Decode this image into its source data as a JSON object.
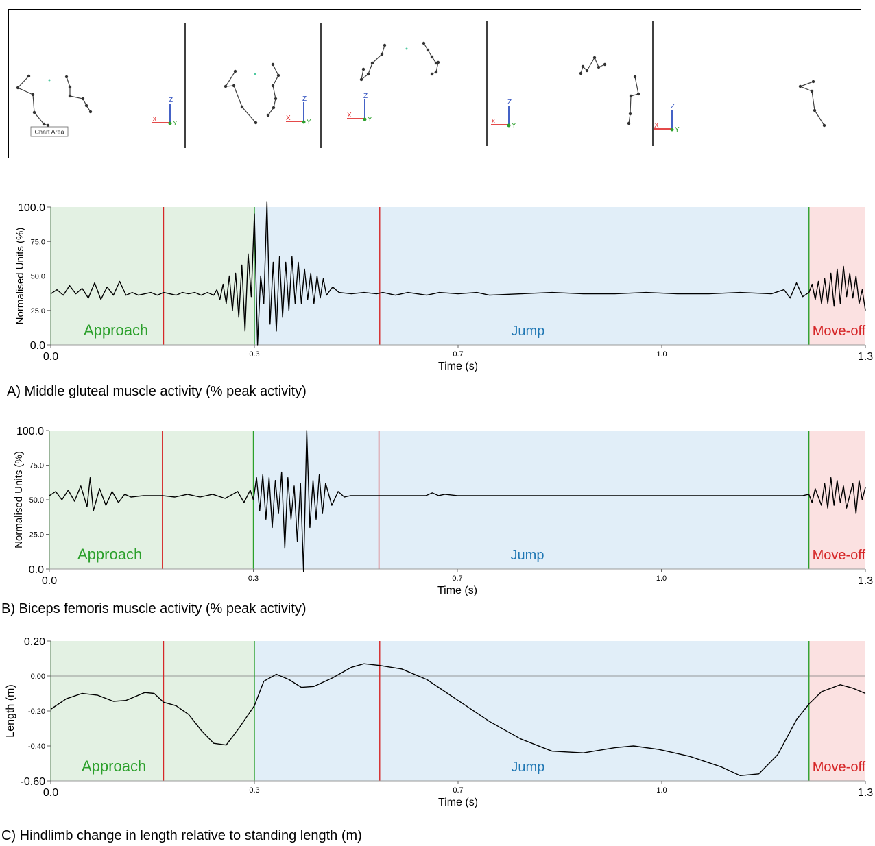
{
  "stick_panel": {
    "tooltip": "Chart Area",
    "axis_labels": {
      "x": "X",
      "y": "Y",
      "z": "Z"
    },
    "colors": {
      "x": "#e03030",
      "y": "#2ca02c",
      "z": "#3050c0",
      "segment": "#404040",
      "marker": "#4fc9a0"
    }
  },
  "phase_colors": {
    "approach_fill": "#e3f1e3",
    "jump_fill": "#e1eef8",
    "moveoff_fill": "#fbe1e1",
    "approach_text": "#2ca02c",
    "jump_text": "#1f77b4",
    "moveoff_text": "#d62728",
    "red_line": "#d62728",
    "green_line": "#2ca02c"
  },
  "chart_data": [
    {
      "id": "A",
      "type": "line",
      "caption": "A) Middle gluteal muscle activity (% peak activity)",
      "ylabel": "Normalised Units (%)",
      "xlabel": "Time (s)",
      "xlim": [
        0,
        1.3
      ],
      "ylim": [
        0,
        100
      ],
      "x_ticks": [
        {
          "v": 0,
          "label": "0.0"
        },
        {
          "v": 0.325,
          "label": "0.3"
        },
        {
          "v": 0.65,
          "label": "0.7"
        },
        {
          "v": 0.975,
          "label": "1.0"
        },
        {
          "v": 1.3,
          "label": "1.3"
        }
      ],
      "y_ticks": [
        {
          "v": 0,
          "label": "0.0"
        },
        {
          "v": 25,
          "label": "25.0"
        },
        {
          "v": 50,
          "label": "50.0"
        },
        {
          "v": 75,
          "label": "75.0"
        },
        {
          "v": 100,
          "label": "100.0"
        }
      ],
      "phases": [
        {
          "label": "Approach",
          "start": 0,
          "end": 0.325
        },
        {
          "label": "Jump",
          "start": 0.325,
          "end": 1.21
        },
        {
          "label": "Move-off",
          "start": 1.21,
          "end": 1.3
        }
      ],
      "red_lines": [
        0.18,
        0.525
      ],
      "green_lines": [
        0,
        0.325,
        1.21
      ],
      "baseline": 37,
      "y_points": [
        [
          0,
          37
        ],
        [
          0.01,
          40
        ],
        [
          0.02,
          36
        ],
        [
          0.03,
          43
        ],
        [
          0.04,
          37
        ],
        [
          0.05,
          41
        ],
        [
          0.06,
          34
        ],
        [
          0.07,
          45
        ],
        [
          0.08,
          33
        ],
        [
          0.09,
          42
        ],
        [
          0.1,
          36
        ],
        [
          0.11,
          46
        ],
        [
          0.12,
          36
        ],
        [
          0.13,
          38
        ],
        [
          0.14,
          36
        ],
        [
          0.15,
          37
        ],
        [
          0.16,
          38
        ],
        [
          0.17,
          36
        ],
        [
          0.18,
          38
        ],
        [
          0.19,
          37
        ],
        [
          0.2,
          36
        ],
        [
          0.21,
          38
        ],
        [
          0.22,
          37
        ],
        [
          0.23,
          38
        ],
        [
          0.24,
          36
        ],
        [
          0.25,
          38
        ],
        [
          0.26,
          36
        ],
        [
          0.265,
          40
        ],
        [
          0.27,
          33
        ],
        [
          0.275,
          44
        ],
        [
          0.28,
          30
        ],
        [
          0.285,
          50
        ],
        [
          0.29,
          25
        ],
        [
          0.295,
          52
        ],
        [
          0.3,
          20
        ],
        [
          0.305,
          58
        ],
        [
          0.31,
          10
        ],
        [
          0.315,
          66
        ],
        [
          0.32,
          35
        ],
        [
          0.325,
          95
        ],
        [
          0.33,
          0
        ],
        [
          0.335,
          50
        ],
        [
          0.34,
          30
        ],
        [
          0.345,
          104
        ],
        [
          0.35,
          15
        ],
        [
          0.355,
          60
        ],
        [
          0.36,
          10
        ],
        [
          0.365,
          64
        ],
        [
          0.37,
          20
        ],
        [
          0.375,
          60
        ],
        [
          0.38,
          25
        ],
        [
          0.385,
          64
        ],
        [
          0.39,
          30
        ],
        [
          0.395,
          60
        ],
        [
          0.4,
          30
        ],
        [
          0.405,
          55
        ],
        [
          0.41,
          33
        ],
        [
          0.415,
          52
        ],
        [
          0.42,
          30
        ],
        [
          0.425,
          50
        ],
        [
          0.43,
          34
        ],
        [
          0.435,
          48
        ],
        [
          0.44,
          36
        ],
        [
          0.45,
          42
        ],
        [
          0.46,
          38
        ],
        [
          0.48,
          37
        ],
        [
          0.5,
          38
        ],
        [
          0.52,
          37
        ],
        [
          0.53,
          38
        ],
        [
          0.55,
          36
        ],
        [
          0.57,
          38
        ],
        [
          0.6,
          36
        ],
        [
          0.62,
          38
        ],
        [
          0.65,
          37
        ],
        [
          0.68,
          38
        ],
        [
          0.7,
          36
        ],
        [
          0.75,
          37
        ],
        [
          0.8,
          38
        ],
        [
          0.85,
          37
        ],
        [
          0.9,
          37
        ],
        [
          0.95,
          38
        ],
        [
          1.0,
          37
        ],
        [
          1.05,
          37
        ],
        [
          1.1,
          38
        ],
        [
          1.15,
          37
        ],
        [
          1.17,
          40
        ],
        [
          1.18,
          34
        ],
        [
          1.19,
          45
        ],
        [
          1.2,
          35
        ],
        [
          1.21,
          38
        ],
        [
          1.215,
          44
        ],
        [
          1.22,
          33
        ],
        [
          1.225,
          46
        ],
        [
          1.23,
          30
        ],
        [
          1.235,
          48
        ],
        [
          1.24,
          30
        ],
        [
          1.245,
          52
        ],
        [
          1.25,
          28
        ],
        [
          1.255,
          55
        ],
        [
          1.26,
          30
        ],
        [
          1.265,
          57
        ],
        [
          1.27,
          35
        ],
        [
          1.275,
          52
        ],
        [
          1.28,
          34
        ],
        [
          1.285,
          50
        ],
        [
          1.29,
          30
        ],
        [
          1.295,
          40
        ],
        [
          1.3,
          25
        ]
      ]
    },
    {
      "id": "B",
      "type": "line",
      "caption": "B) Biceps femoris muscle activity (% peak activity)",
      "ylabel": "Normalised Units (%)",
      "xlabel": "Time (s)",
      "xlim": [
        0,
        1.3
      ],
      "ylim": [
        0,
        100
      ],
      "x_ticks": [
        {
          "v": 0,
          "label": "0.0"
        },
        {
          "v": 0.325,
          "label": "0.3"
        },
        {
          "v": 0.65,
          "label": "0.7"
        },
        {
          "v": 0.975,
          "label": "1.0"
        },
        {
          "v": 1.3,
          "label": "1.3"
        }
      ],
      "y_ticks": [
        {
          "v": 0,
          "label": "0.0"
        },
        {
          "v": 25,
          "label": "25.0"
        },
        {
          "v": 50,
          "label": "50.0"
        },
        {
          "v": 75,
          "label": "75.0"
        },
        {
          "v": 100,
          "label": "100.0"
        }
      ],
      "phases": [
        {
          "label": "Approach",
          "start": 0,
          "end": 0.325
        },
        {
          "label": "Jump",
          "start": 0.325,
          "end": 1.21
        },
        {
          "label": "Move-off",
          "start": 1.21,
          "end": 1.3
        }
      ],
      "red_lines": [
        0.18,
        0.525
      ],
      "green_lines": [
        0,
        0.325,
        1.21
      ],
      "baseline": 53,
      "y_points": [
        [
          0,
          53
        ],
        [
          0.01,
          56
        ],
        [
          0.02,
          50
        ],
        [
          0.03,
          57
        ],
        [
          0.04,
          49
        ],
        [
          0.05,
          60
        ],
        [
          0.06,
          45
        ],
        [
          0.065,
          66
        ],
        [
          0.07,
          42
        ],
        [
          0.08,
          58
        ],
        [
          0.09,
          46
        ],
        [
          0.1,
          56
        ],
        [
          0.11,
          48
        ],
        [
          0.12,
          54
        ],
        [
          0.13,
          52
        ],
        [
          0.15,
          53
        ],
        [
          0.18,
          53
        ],
        [
          0.2,
          52
        ],
        [
          0.22,
          54
        ],
        [
          0.24,
          52
        ],
        [
          0.26,
          54
        ],
        [
          0.28,
          51
        ],
        [
          0.3,
          56
        ],
        [
          0.31,
          48
        ],
        [
          0.32,
          57
        ],
        [
          0.325,
          50
        ],
        [
          0.33,
          66
        ],
        [
          0.335,
          42
        ],
        [
          0.34,
          68
        ],
        [
          0.345,
          36
        ],
        [
          0.35,
          66
        ],
        [
          0.355,
          30
        ],
        [
          0.36,
          64
        ],
        [
          0.365,
          40
        ],
        [
          0.37,
          70
        ],
        [
          0.375,
          15
        ],
        [
          0.38,
          66
        ],
        [
          0.385,
          36
        ],
        [
          0.39,
          60
        ],
        [
          0.395,
          20
        ],
        [
          0.4,
          62
        ],
        [
          0.405,
          -2
        ],
        [
          0.41,
          100
        ],
        [
          0.415,
          30
        ],
        [
          0.42,
          64
        ],
        [
          0.425,
          36
        ],
        [
          0.43,
          68
        ],
        [
          0.435,
          40
        ],
        [
          0.44,
          62
        ],
        [
          0.45,
          46
        ],
        [
          0.46,
          56
        ],
        [
          0.47,
          52
        ],
        [
          0.48,
          53
        ],
        [
          0.5,
          53
        ],
        [
          0.55,
          53
        ],
        [
          0.6,
          53
        ],
        [
          0.61,
          55
        ],
        [
          0.62,
          53
        ],
        [
          0.63,
          54
        ],
        [
          0.65,
          53
        ],
        [
          0.7,
          53
        ],
        [
          0.8,
          53
        ],
        [
          0.9,
          53
        ],
        [
          1.0,
          53
        ],
        [
          1.1,
          53
        ],
        [
          1.2,
          53
        ],
        [
          1.21,
          54
        ],
        [
          1.215,
          48
        ],
        [
          1.22,
          58
        ],
        [
          1.23,
          46
        ],
        [
          1.235,
          62
        ],
        [
          1.24,
          44
        ],
        [
          1.245,
          66
        ],
        [
          1.25,
          46
        ],
        [
          1.255,
          64
        ],
        [
          1.26,
          48
        ],
        [
          1.265,
          60
        ],
        [
          1.27,
          44
        ],
        [
          1.28,
          62
        ],
        [
          1.285,
          40
        ],
        [
          1.29,
          64
        ],
        [
          1.295,
          50
        ],
        [
          1.3,
          59
        ]
      ]
    },
    {
      "id": "C",
      "type": "line",
      "caption": "C) Hindlimb change in length relative to standing length (m)",
      "ylabel": "Length (m)",
      "xlabel": "Time (s)",
      "xlim": [
        0,
        1.3
      ],
      "ylim": [
        -0.6,
        0.2
      ],
      "x_ticks": [
        {
          "v": 0,
          "label": "0.0"
        },
        {
          "v": 0.325,
          "label": "0.3"
        },
        {
          "v": 0.65,
          "label": "0.7"
        },
        {
          "v": 0.975,
          "label": "1.0"
        },
        {
          "v": 1.3,
          "label": "1.3"
        }
      ],
      "y_ticks": [
        {
          "v": -0.6,
          "label": "-0.60"
        },
        {
          "v": -0.4,
          "label": "-0.40"
        },
        {
          "v": -0.2,
          "label": "-0.20"
        },
        {
          "v": 0,
          "label": "0.00"
        },
        {
          "v": 0.2,
          "label": "0.20"
        }
      ],
      "phases": [
        {
          "label": "Approach",
          "start": 0,
          "end": 0.325
        },
        {
          "label": "Jump",
          "start": 0.325,
          "end": 1.21
        },
        {
          "label": "Move-off",
          "start": 1.21,
          "end": 1.3
        }
      ],
      "red_lines": [
        0.18,
        0.525
      ],
      "green_lines": [
        0,
        0.325,
        1.21
      ],
      "zero_line": 0,
      "y_points": [
        [
          0,
          -0.19
        ],
        [
          0.025,
          -0.13
        ],
        [
          0.05,
          -0.1
        ],
        [
          0.075,
          -0.11
        ],
        [
          0.1,
          -0.145
        ],
        [
          0.12,
          -0.14
        ],
        [
          0.15,
          -0.095
        ],
        [
          0.165,
          -0.1
        ],
        [
          0.18,
          -0.15
        ],
        [
          0.2,
          -0.17
        ],
        [
          0.22,
          -0.22
        ],
        [
          0.24,
          -0.31
        ],
        [
          0.26,
          -0.385
        ],
        [
          0.28,
          -0.395
        ],
        [
          0.3,
          -0.3
        ],
        [
          0.325,
          -0.17
        ],
        [
          0.34,
          -0.03
        ],
        [
          0.36,
          0.01
        ],
        [
          0.38,
          -0.02
        ],
        [
          0.4,
          -0.065
        ],
        [
          0.42,
          -0.06
        ],
        [
          0.45,
          -0.01
        ],
        [
          0.48,
          0.05
        ],
        [
          0.5,
          0.07
        ],
        [
          0.525,
          0.06
        ],
        [
          0.56,
          0.04
        ],
        [
          0.6,
          -0.02
        ],
        [
          0.65,
          -0.14
        ],
        [
          0.7,
          -0.26
        ],
        [
          0.75,
          -0.36
        ],
        [
          0.8,
          -0.43
        ],
        [
          0.85,
          -0.44
        ],
        [
          0.9,
          -0.41
        ],
        [
          0.93,
          -0.4
        ],
        [
          0.97,
          -0.42
        ],
        [
          1.02,
          -0.46
        ],
        [
          1.07,
          -0.52
        ],
        [
          1.1,
          -0.57
        ],
        [
          1.13,
          -0.56
        ],
        [
          1.16,
          -0.45
        ],
        [
          1.19,
          -0.25
        ],
        [
          1.21,
          -0.16
        ],
        [
          1.23,
          -0.09
        ],
        [
          1.26,
          -0.05
        ],
        [
          1.28,
          -0.07
        ],
        [
          1.3,
          -0.1
        ]
      ]
    }
  ]
}
